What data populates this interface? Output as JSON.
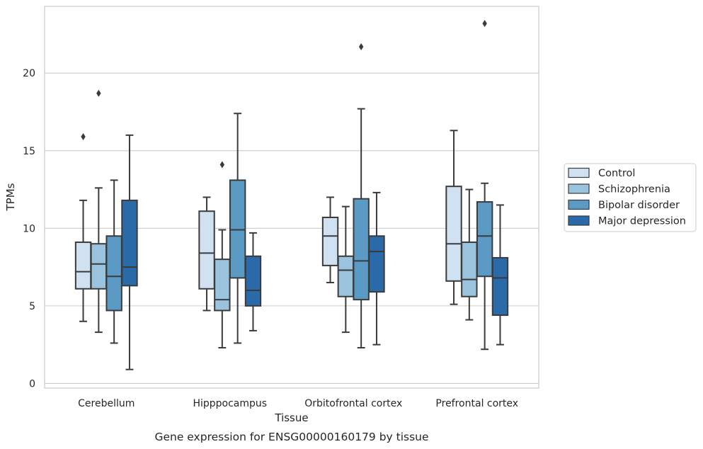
{
  "chart_data": {
    "type": "box",
    "caption": "Gene expression for ENSG00000160179 by tissue",
    "xlabel": "Tissue",
    "ylabel": "TPMs",
    "ylim": [
      -0.3,
      24.3
    ],
    "yticks": [
      0,
      5,
      10,
      15,
      20
    ],
    "grid": true,
    "legend_position": "right, outside plot",
    "categories": [
      "Cerebellum",
      "Hipppocampus",
      "Orbitofrontal cortex",
      "Prefrontal cortex"
    ],
    "series": [
      {
        "name": "Control",
        "color": "#d0e1f2",
        "boxes": [
          {
            "whislo": 4.0,
            "q1": 6.1,
            "med": 7.2,
            "q3": 9.1,
            "whishi": 11.8,
            "fliers": [
              15.9
            ]
          },
          {
            "whislo": 4.7,
            "q1": 6.1,
            "med": 8.4,
            "q3": 11.1,
            "whishi": 12.0,
            "fliers": []
          },
          {
            "whislo": 6.5,
            "q1": 7.6,
            "med": 9.5,
            "q3": 10.7,
            "whishi": 12.0,
            "fliers": []
          },
          {
            "whislo": 5.1,
            "q1": 6.6,
            "med": 9.0,
            "q3": 12.7,
            "whishi": 16.3,
            "fliers": []
          }
        ]
      },
      {
        "name": "Schizophrenia",
        "color": "#9ac3de",
        "boxes": [
          {
            "whislo": 3.3,
            "q1": 6.1,
            "med": 7.7,
            "q3": 9.0,
            "whishi": 12.6,
            "fliers": [
              18.7
            ]
          },
          {
            "whislo": 2.3,
            "q1": 4.7,
            "med": 5.4,
            "q3": 8.0,
            "whishi": 9.9,
            "fliers": [
              14.1
            ]
          },
          {
            "whislo": 3.3,
            "q1": 5.6,
            "med": 7.3,
            "q3": 8.2,
            "whishi": 11.4,
            "fliers": []
          },
          {
            "whislo": 4.1,
            "q1": 5.6,
            "med": 6.7,
            "q3": 9.1,
            "whishi": 12.5,
            "fliers": []
          }
        ]
      },
      {
        "name": "Bipolar disorder",
        "color": "#5b9ac4",
        "boxes": [
          {
            "whislo": 2.6,
            "q1": 4.7,
            "med": 6.9,
            "q3": 9.5,
            "whishi": 13.1,
            "fliers": []
          },
          {
            "whislo": 2.6,
            "q1": 6.8,
            "med": 9.9,
            "q3": 13.1,
            "whishi": 17.4,
            "fliers": []
          },
          {
            "whislo": 2.3,
            "q1": 5.4,
            "med": 7.9,
            "q3": 11.9,
            "whishi": 17.7,
            "fliers": [
              21.7
            ]
          },
          {
            "whislo": 2.2,
            "q1": 6.9,
            "med": 9.5,
            "q3": 11.7,
            "whishi": 12.9,
            "fliers": [
              23.2
            ]
          }
        ]
      },
      {
        "name": "Major depression",
        "color": "#2a6aa8",
        "boxes": [
          {
            "whislo": 0.9,
            "q1": 6.3,
            "med": 7.5,
            "q3": 11.8,
            "whishi": 16.0,
            "fliers": []
          },
          {
            "whislo": 3.4,
            "q1": 5.0,
            "med": 6.0,
            "q3": 8.2,
            "whishi": 9.7,
            "fliers": []
          },
          {
            "whislo": 2.5,
            "q1": 5.9,
            "med": 8.5,
            "q3": 9.5,
            "whishi": 12.3,
            "fliers": []
          },
          {
            "whislo": 2.5,
            "q1": 4.4,
            "med": 6.8,
            "q3": 8.1,
            "whishi": 11.5,
            "fliers": []
          }
        ]
      }
    ]
  }
}
